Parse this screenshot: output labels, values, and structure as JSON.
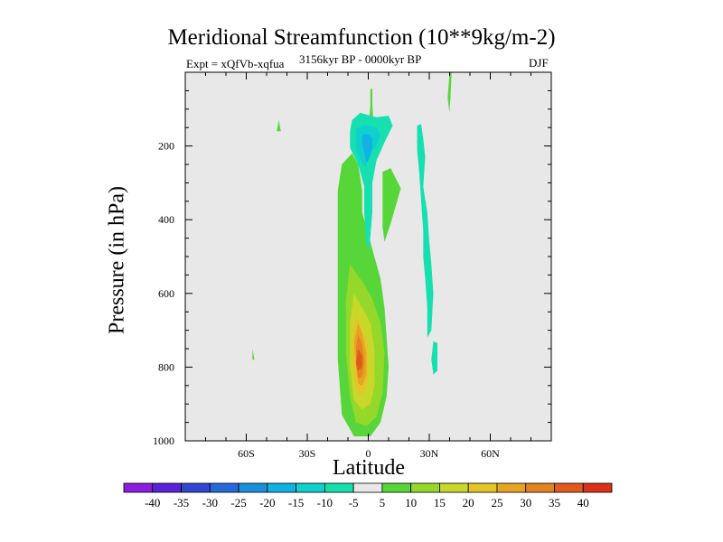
{
  "chart_data": {
    "type": "heatmap",
    "title": "Meridional Streamfunction (10**9kg/m-2)",
    "subtitle_left": "Expt = xQfVb-xqfua",
    "subtitle_center": "3156kyr BP - 0000kyr BP",
    "subtitle_right": "DJF",
    "xlabel": "Latitude",
    "ylabel": "Pressure (in hPa)",
    "xlim": [
      -90,
      90
    ],
    "ylim": [
      1000,
      0
    ],
    "x_ticks": [
      {
        "value": -60,
        "label": "60S"
      },
      {
        "value": -30,
        "label": "30S"
      },
      {
        "value": 0,
        "label": "0"
      },
      {
        "value": 30,
        "label": "30N"
      },
      {
        "value": 60,
        "label": "60N"
      }
    ],
    "y_ticks": [
      {
        "value": 200,
        "label": "200"
      },
      {
        "value": 400,
        "label": "400"
      },
      {
        "value": 600,
        "label": "600"
      },
      {
        "value": 800,
        "label": "800"
      },
      {
        "value": 1000,
        "label": "1000"
      }
    ],
    "colorbar": {
      "labels": [
        "-40",
        "-35",
        "-30",
        "-25",
        "-20",
        "-15",
        "-10",
        "-5",
        "5",
        "10",
        "15",
        "20",
        "25",
        "30",
        "35",
        "40"
      ],
      "colors": [
        "#8b1de0",
        "#5a22d8",
        "#3045d2",
        "#2568dc",
        "#1890dc",
        "#10b1e3",
        "#0fcfcf",
        "#16e0b0",
        "#e8e8e8",
        "#57d63a",
        "#96d82a",
        "#c8d82a",
        "#e5c427",
        "#e6a423",
        "#e38321",
        "#e05a1c",
        "#d9311a"
      ]
    },
    "regions": [
      {
        "level": 5,
        "points": [
          [
            -13,
            250
          ],
          [
            -8,
            220
          ],
          [
            -5,
            250
          ],
          [
            -3,
            320
          ],
          [
            -3,
            380
          ],
          [
            1,
            460
          ],
          [
            6,
            560
          ],
          [
            8,
            640
          ],
          [
            9,
            720
          ],
          [
            10,
            800
          ],
          [
            9,
            880
          ],
          [
            6,
            950
          ],
          [
            1,
            988
          ],
          [
            -7,
            988
          ],
          [
            -13,
            930
          ],
          [
            -15,
            780
          ],
          [
            -15,
            500
          ],
          [
            -15,
            320
          ]
        ]
      },
      {
        "level": 10,
        "points": [
          [
            -9,
            520
          ],
          [
            -6,
            545
          ],
          [
            -2,
            575
          ],
          [
            2,
            615
          ],
          [
            6,
            680
          ],
          [
            8,
            760
          ],
          [
            7,
            870
          ],
          [
            4,
            935
          ],
          [
            -1,
            960
          ],
          [
            -6,
            950
          ],
          [
            -9,
            880
          ],
          [
            -11,
            760
          ],
          [
            -11,
            620
          ]
        ]
      },
      {
        "level": 15,
        "points": [
          [
            -7,
            600
          ],
          [
            -3,
            640
          ],
          [
            1,
            680
          ],
          [
            3,
            750
          ],
          [
            3,
            850
          ],
          [
            1,
            900
          ],
          [
            -3,
            915
          ],
          [
            -7,
            890
          ],
          [
            -9,
            800
          ],
          [
            -9,
            680
          ]
        ]
      },
      {
        "level": 20,
        "points": [
          [
            -6,
            660
          ],
          [
            -3,
            700
          ],
          [
            0,
            740
          ],
          [
            0,
            830
          ],
          [
            -2,
            870
          ],
          [
            -5,
            875
          ],
          [
            -7,
            830
          ],
          [
            -8,
            740
          ]
        ]
      },
      {
        "level": 25,
        "points": [
          [
            -5,
            680
          ],
          [
            -3,
            710
          ],
          [
            -1,
            760
          ],
          [
            -1,
            820
          ],
          [
            -3,
            850
          ],
          [
            -5,
            845
          ],
          [
            -6,
            800
          ],
          [
            -7,
            730
          ]
        ]
      },
      {
        "level": 30,
        "points": [
          [
            -5,
            710
          ],
          [
            -3,
            740
          ],
          [
            -2,
            785
          ],
          [
            -3,
            825
          ],
          [
            -5,
            830
          ],
          [
            -6,
            790
          ],
          [
            -6,
            745
          ]
        ]
      },
      {
        "level": 35,
        "points": [
          [
            -5,
            750
          ],
          [
            -3,
            770
          ],
          [
            -3,
            800
          ],
          [
            -5,
            810
          ],
          [
            -6,
            790
          ]
        ]
      },
      {
        "level": 5,
        "points": [
          [
            -45,
            160
          ],
          [
            -44,
            130
          ],
          [
            -43,
            160
          ]
        ]
      },
      {
        "level": 5,
        "points": [
          [
            -57,
            780
          ],
          [
            -57,
            750
          ],
          [
            -56,
            780
          ]
        ]
      },
      {
        "level": 5,
        "points": [
          [
            7,
            270
          ],
          [
            11,
            260
          ],
          [
            16,
            315
          ],
          [
            11,
            410
          ],
          [
            8,
            460
          ],
          [
            7,
            420
          ],
          [
            7,
            330
          ]
        ]
      },
      {
        "level": 5,
        "points": [
          [
            1,
            45
          ],
          [
            2,
            45
          ],
          [
            2,
            90
          ],
          [
            2.5,
            130
          ],
          [
            0.5,
            130
          ],
          [
            1,
            90
          ]
        ]
      },
      {
        "level": 5,
        "points": [
          [
            40,
            0
          ],
          [
            41,
            0
          ],
          [
            40.5,
            60
          ],
          [
            40,
            110
          ],
          [
            39,
            70
          ]
        ]
      },
      {
        "level": -5,
        "points": [
          [
            -8,
            130
          ],
          [
            -4,
            110
          ],
          [
            4,
            122
          ],
          [
            10,
            118
          ],
          [
            12,
            145
          ],
          [
            8,
            190
          ],
          [
            4,
            240
          ],
          [
            2,
            300
          ],
          [
            2,
            380
          ],
          [
            0.5,
            480
          ],
          [
            -1,
            470
          ],
          [
            -2,
            380
          ],
          [
            -2,
            310
          ],
          [
            -5,
            250
          ],
          [
            -9,
            205
          ],
          [
            -9,
            160
          ]
        ]
      },
      {
        "level": -5,
        "points": [
          [
            24,
            145
          ],
          [
            26,
            140
          ],
          [
            27,
            180
          ],
          [
            28,
            230
          ],
          [
            27,
            310
          ],
          [
            29,
            380
          ],
          [
            30,
            460
          ],
          [
            31,
            520
          ],
          [
            32,
            600
          ],
          [
            31,
            700
          ],
          [
            29,
            720
          ],
          [
            29,
            640
          ],
          [
            28,
            560
          ],
          [
            27,
            500
          ],
          [
            27,
            430
          ],
          [
            26,
            350
          ],
          [
            25,
            270
          ],
          [
            24,
            210
          ]
        ]
      },
      {
        "level": -5,
        "points": [
          [
            32,
            730
          ],
          [
            34,
            735
          ],
          [
            34,
            810
          ],
          [
            32,
            820
          ],
          [
            31,
            780
          ]
        ]
      },
      {
        "level": -10,
        "points": [
          [
            -6,
            155
          ],
          [
            -2,
            143
          ],
          [
            4,
            150
          ],
          [
            6,
            170
          ],
          [
            4,
            200
          ],
          [
            0,
            230
          ],
          [
            -1,
            258
          ],
          [
            -3,
            248
          ],
          [
            -6,
            210
          ],
          [
            -6,
            180
          ]
        ]
      },
      {
        "level": -15,
        "points": [
          [
            -3,
            170
          ],
          [
            0,
            168
          ],
          [
            2,
            180
          ],
          [
            2,
            200
          ],
          [
            1,
            225
          ],
          [
            0,
            240
          ],
          [
            -1,
            245
          ],
          [
            -2,
            215
          ],
          [
            -3,
            190
          ]
        ]
      }
    ]
  }
}
